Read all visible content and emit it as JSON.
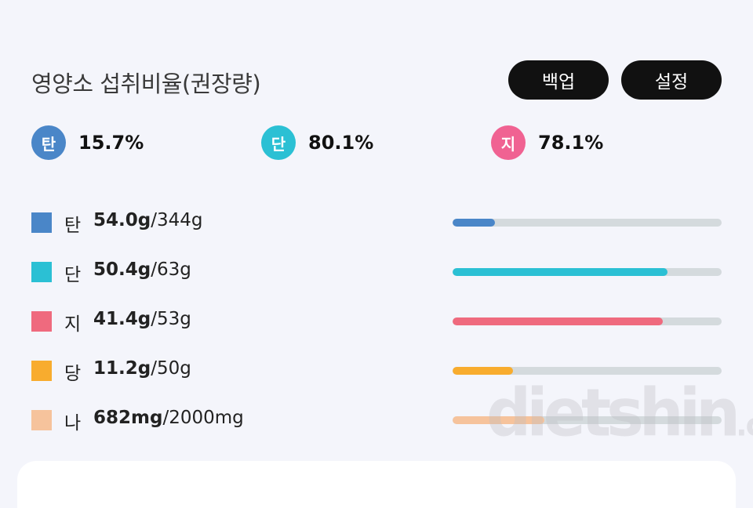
{
  "header": {
    "title": "영양소 섭취비율(권장량)",
    "backup_label": "백업",
    "settings_label": "설정"
  },
  "ratios": [
    {
      "short": "탄",
      "value": "15.7%",
      "color": "#4a86c8"
    },
    {
      "short": "단",
      "value": "80.1%",
      "color": "#2bc0d4"
    },
    {
      "short": "지",
      "value": "78.1%",
      "color": "#f06292"
    }
  ],
  "nutrients": [
    {
      "label": "탄",
      "amount": "54.0g",
      "target": "/344g",
      "color": "#4a86c8",
      "fraction": 0.157
    },
    {
      "label": "단",
      "amount": "50.4g",
      "target": "/63g",
      "color": "#2bc0d4",
      "fraction": 0.8
    },
    {
      "label": "지",
      "amount": "41.4g",
      "target": "/53g",
      "color": "#ef6a7e",
      "fraction": 0.781
    },
    {
      "label": "당",
      "amount": "11.2g",
      "target": "/50g",
      "color": "#f8ac2e",
      "fraction": 0.224
    },
    {
      "label": "나",
      "amount": "682mg",
      "target": "/2000mg",
      "color": "#f6c39c",
      "fraction": 0.341
    }
  ],
  "watermark": {
    "text": "dietshin",
    "suffix": ".com"
  }
}
